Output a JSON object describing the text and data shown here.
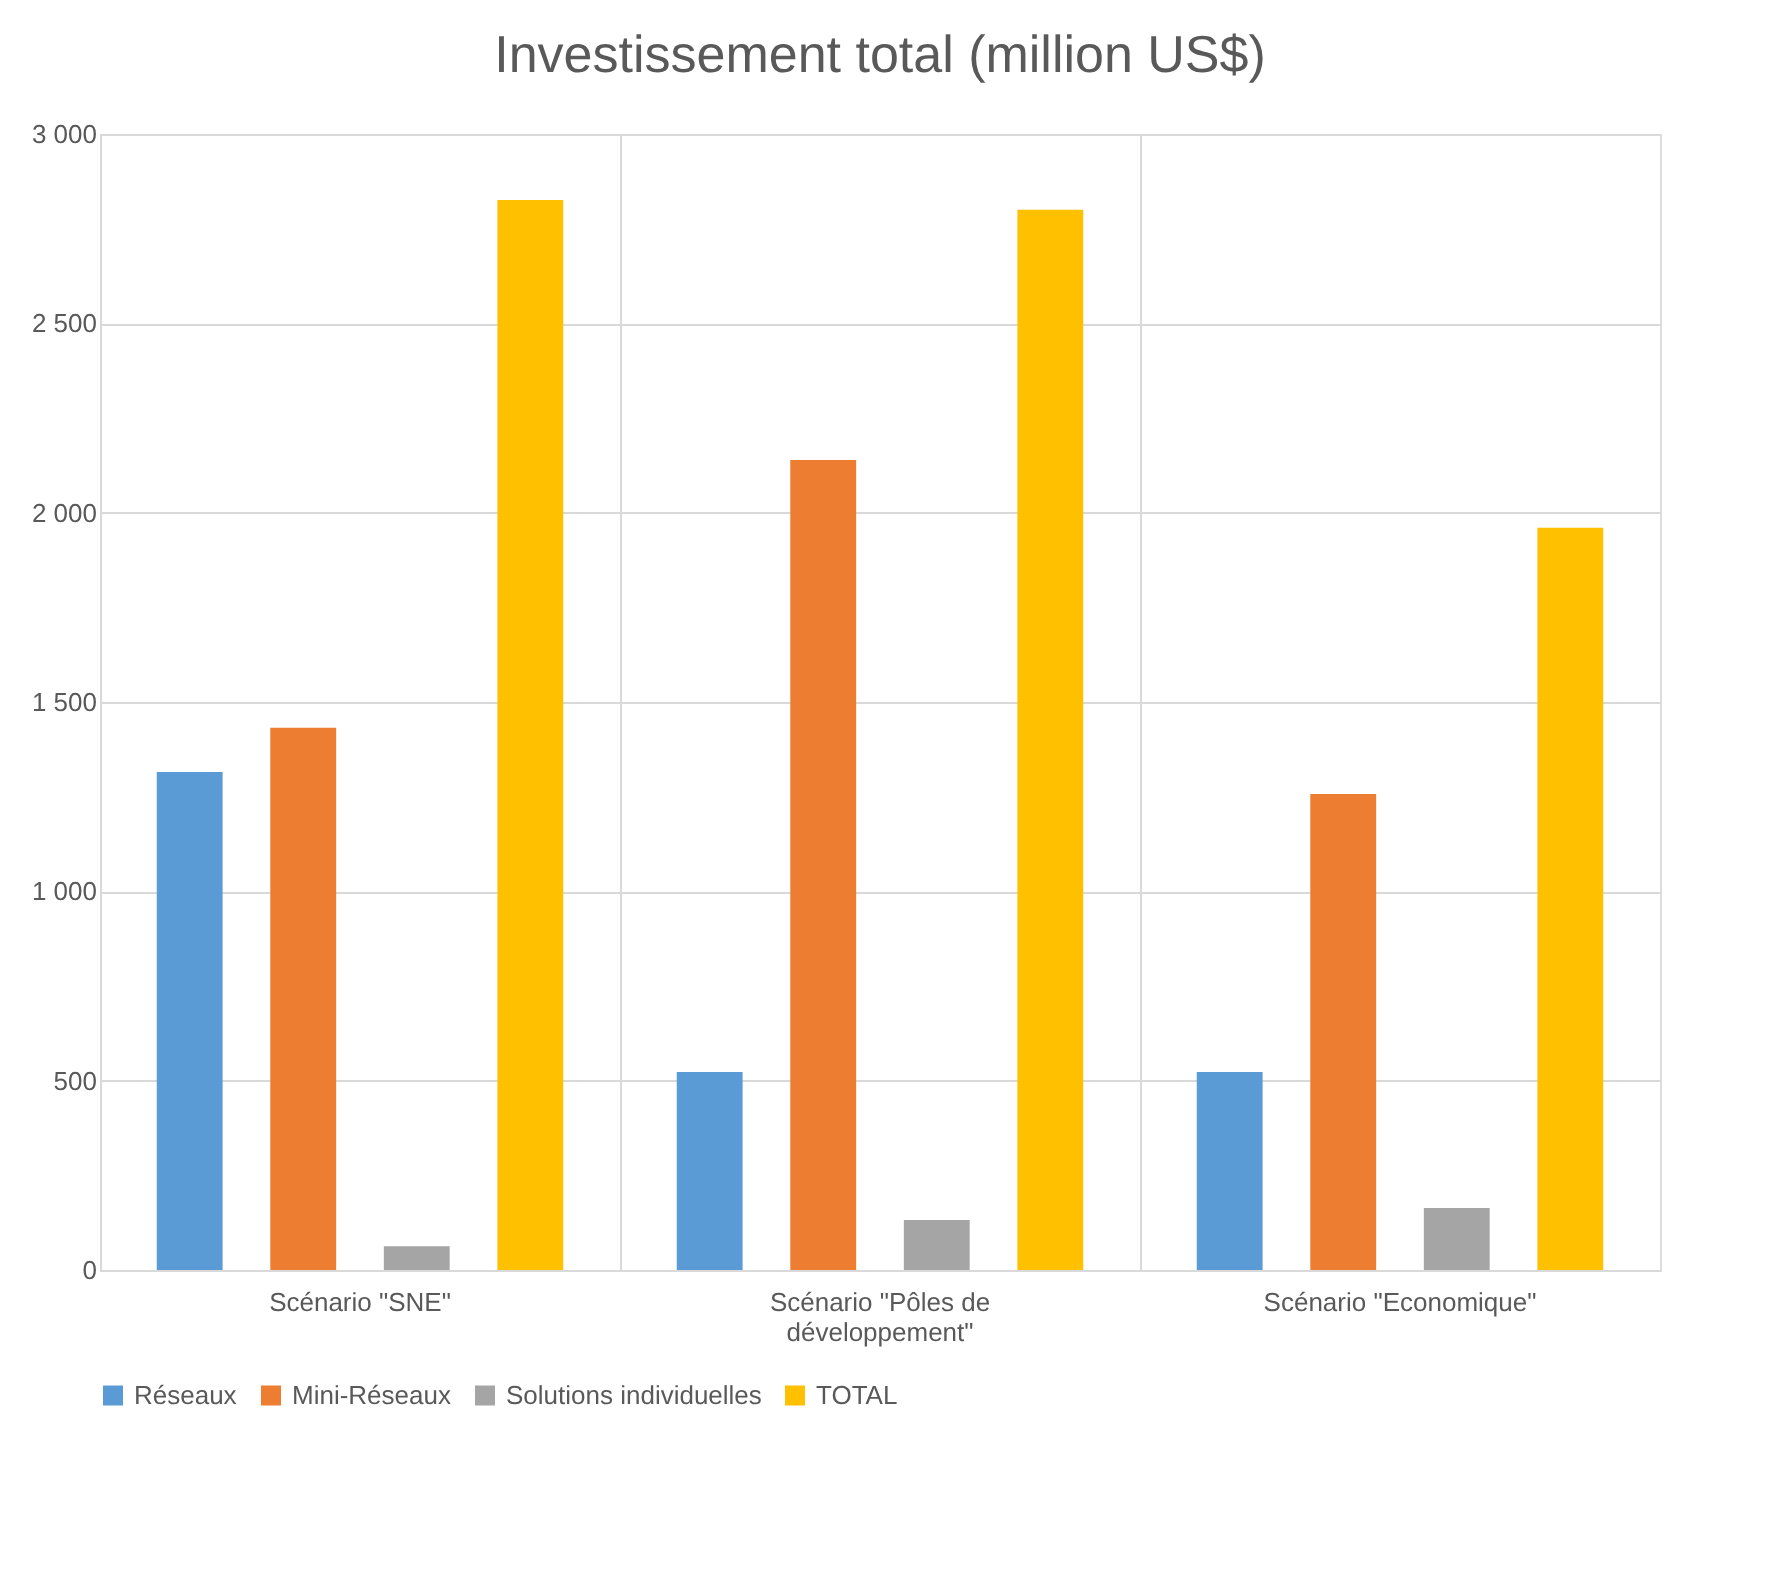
{
  "chart_data": {
    "type": "bar",
    "title": "Investissement total (million US$)",
    "categories": [
      "Scénario \"SNE\"",
      "Scénario \"Pôles de développement\"",
      "Scénario \"Economique\""
    ],
    "series": [
      {
        "name": "Réseaux",
        "color": "#5b9bd5",
        "values": [
          1315,
          523,
          523
        ]
      },
      {
        "name": "Mini-Réseaux",
        "color": "#ed7d31",
        "values": [
          1432,
          2139,
          1257
        ]
      },
      {
        "name": "Solutions individuelles",
        "color": "#a5a5a5",
        "values": [
          63,
          132,
          164
        ]
      },
      {
        "name": "TOTAL",
        "color": "#ffc000",
        "values": [
          2826,
          2800,
          1960
        ]
      }
    ],
    "ylim": [
      0,
      3000
    ],
    "yticks": [
      0,
      500,
      {
        "value": 1000,
        "label": "1 000"
      },
      {
        "value": 1500,
        "label": "1 500"
      },
      {
        "value": 2000,
        "label": "2 000"
      },
      {
        "value": 2500,
        "label": "2 500"
      },
      {
        "value": 3000,
        "label": "3 000"
      }
    ],
    "grid": true,
    "legend": "bottom"
  }
}
